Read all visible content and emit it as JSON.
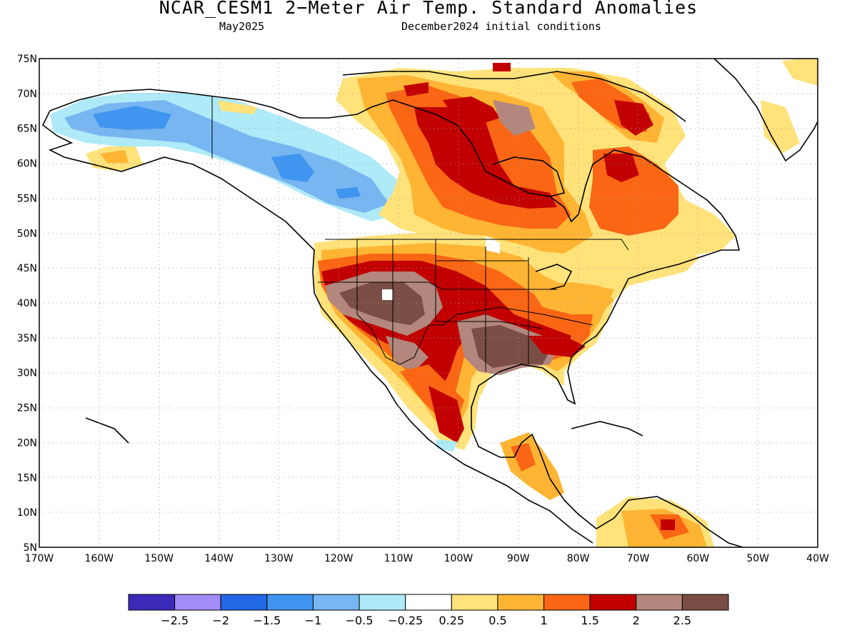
{
  "header": {
    "title": "NCAR_CESM1 2−Meter Air Temp. Standard Anomalies",
    "valid_month": "May2025",
    "init": "December2024 initial conditions"
  },
  "map": {
    "lat_labels": [
      "75N",
      "70N",
      "65N",
      "60N",
      "55N",
      "50N",
      "45N",
      "40N",
      "35N",
      "30N",
      "25N",
      "20N",
      "15N",
      "10N",
      "5N"
    ],
    "lon_labels": [
      "170W",
      "160W",
      "150W",
      "140W",
      "130W",
      "120W",
      "110W",
      "100W",
      "90W",
      "80W",
      "70W",
      "60W",
      "50W",
      "40W"
    ],
    "lat_range": [
      5,
      75
    ],
    "lon_range": [
      -170,
      -40
    ],
    "grid": "dotted"
  },
  "colorbar": {
    "colors": [
      "#3c2ab8",
      "#a38cf7",
      "#2468e8",
      "#3f95f0",
      "#78b6f2",
      "#aeeaf7",
      "#ffffff",
      "#ffe27a",
      "#ffb533",
      "#fa6614",
      "#c20000",
      "#b3877d",
      "#7a4e44"
    ],
    "labels": [
      "−2.5",
      "−2",
      "−1.5",
      "−1",
      "−0.5",
      "−0.25",
      "0.25",
      "0.5",
      "1",
      "1.5",
      "2",
      "2.5"
    ]
  }
}
